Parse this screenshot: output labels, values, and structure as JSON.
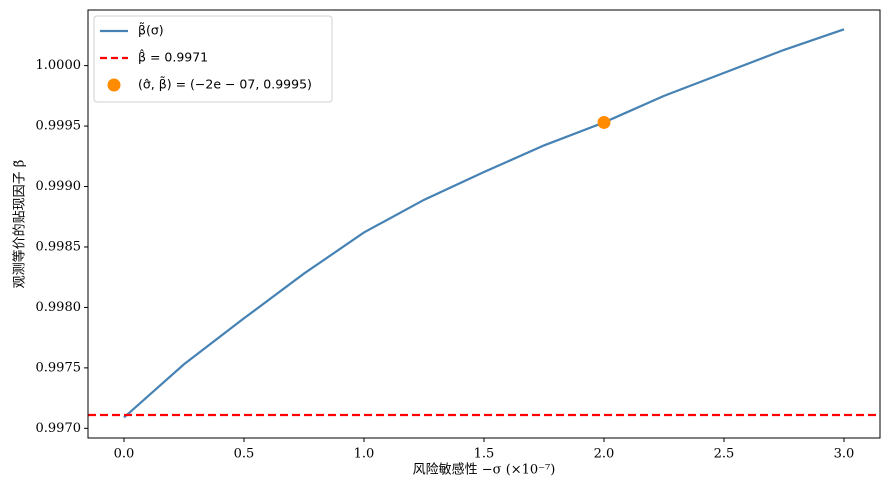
{
  "chart_data": {
    "type": "line",
    "xlabel": "风险敏感性 −σ (×10⁻⁷)",
    "ylabel": "观测等价的贴现因子 β̃",
    "x": [
      0,
      0.25,
      0.5,
      0.75,
      1.0,
      1.25,
      1.5,
      1.75,
      2.0,
      2.25,
      2.5,
      2.75,
      3.0
    ],
    "series": [
      {
        "name": "β̃(σ)",
        "color": "#4682b4",
        "values": [
          0.99709,
          0.99753,
          0.99791,
          0.99828,
          0.99862,
          0.99889,
          0.99912,
          0.99934,
          0.99953,
          0.99975,
          0.99994,
          1.00013,
          1.0003
        ]
      }
    ],
    "hline": {
      "name": "β̂ = 0.9971",
      "value": 0.99711,
      "color": "#ff0000"
    },
    "point": {
      "name": "(σ̂, β̃) = (−2e − 07, 0.9995)",
      "x": 2.0,
      "y": 0.99953,
      "color": "#ff8c00"
    },
    "xlim": [
      -0.15,
      3.15
    ],
    "ylim": [
      0.99692,
      1.00046
    ],
    "xticks": [
      {
        "value": 0,
        "label": "0.0"
      },
      0.5,
      {
        "value": 1,
        "label": "1.0"
      },
      1.5,
      {
        "value": 2,
        "label": "2.0"
      },
      2.5,
      {
        "value": 3,
        "label": "3.0"
      }
    ],
    "yticks": [
      {
        "value": 0.997,
        "label": "0.9970"
      },
      {
        "value": 0.9975,
        "label": "0.9975"
      },
      {
        "value": 0.998,
        "label": "0.9980"
      },
      {
        "value": 0.9985,
        "label": "0.9985"
      },
      {
        "value": 0.999,
        "label": "0.9990"
      },
      {
        "value": 0.9995,
        "label": "0.9995"
      },
      {
        "value": 1.0,
        "label": "1.0000"
      }
    ],
    "legend": "upper left"
  }
}
